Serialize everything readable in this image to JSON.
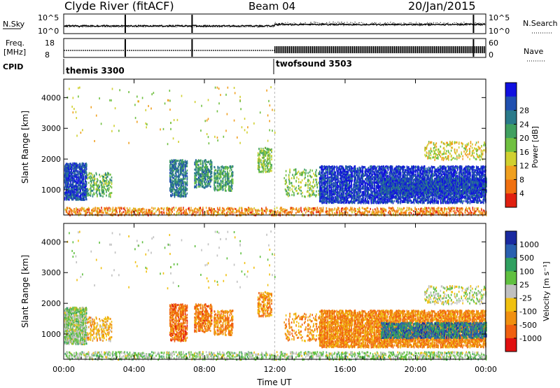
{
  "header": {
    "station": "Clyde River (fitACF)",
    "beam": "Beam 04",
    "date": "20/Jan/2015"
  },
  "strips": {
    "nsky_label": "N.Sky",
    "nsky_ticks": [
      "10^5",
      "10^0"
    ],
    "nsearch_label": "N.Search",
    "nsearch_ticks": [
      "10^5",
      "10^0"
    ],
    "freq_label_1": "Freq.",
    "freq_label_2": "[MHz]",
    "freq_ticks": [
      "18",
      "8"
    ],
    "nave_label": "Nave",
    "nave_ticks": [
      "60",
      "0"
    ],
    "cpid_label": "CPID",
    "cpid_modes": [
      {
        "name": "themis 3300",
        "start_hour": 0
      },
      {
        "name": "twofsound 3503",
        "start_hour": 12
      }
    ]
  },
  "chart_data": [
    {
      "type": "heatmap",
      "name": "power",
      "ylabel": "Slant Range [km]",
      "ylim": [
        180,
        4600
      ],
      "yticks": [
        "1000",
        "2000",
        "3000",
        "4000"
      ],
      "colorbar_label": "Power [dB]",
      "colorbar_ticks": [
        "4",
        "8",
        "12",
        "16",
        "20",
        "24",
        "28"
      ],
      "colorbar_colors": [
        "#1010e0",
        "#2050b0",
        "#2a7a8a",
        "#40a060",
        "#70c040",
        "#d0d030",
        "#f0a020",
        "#f07010",
        "#e02010"
      ]
    },
    {
      "type": "heatmap",
      "name": "velocity",
      "ylabel": "Slant Range [km]",
      "xlabel": "Time UT",
      "ylim": [
        180,
        4600
      ],
      "yticks": [
        "1000",
        "2000",
        "3000",
        "4000"
      ],
      "xticks": [
        "00:00",
        "04:00",
        "08:00",
        "12:00",
        "16:00",
        "20:00",
        "00:00"
      ],
      "xlim": [
        0,
        24
      ],
      "colorbar_label": "Velocity [m s⁻¹]",
      "colorbar_ticks": [
        "1000",
        "500",
        "100",
        "25",
        "-25",
        "-100",
        "-500",
        "-1000"
      ],
      "colorbar_colors": [
        "#1a2aa0",
        "#2a60b0",
        "#30a060",
        "#60c040",
        "#c0c0c0",
        "#f0c010",
        "#f09010",
        "#f06010",
        "#e01010"
      ]
    }
  ]
}
